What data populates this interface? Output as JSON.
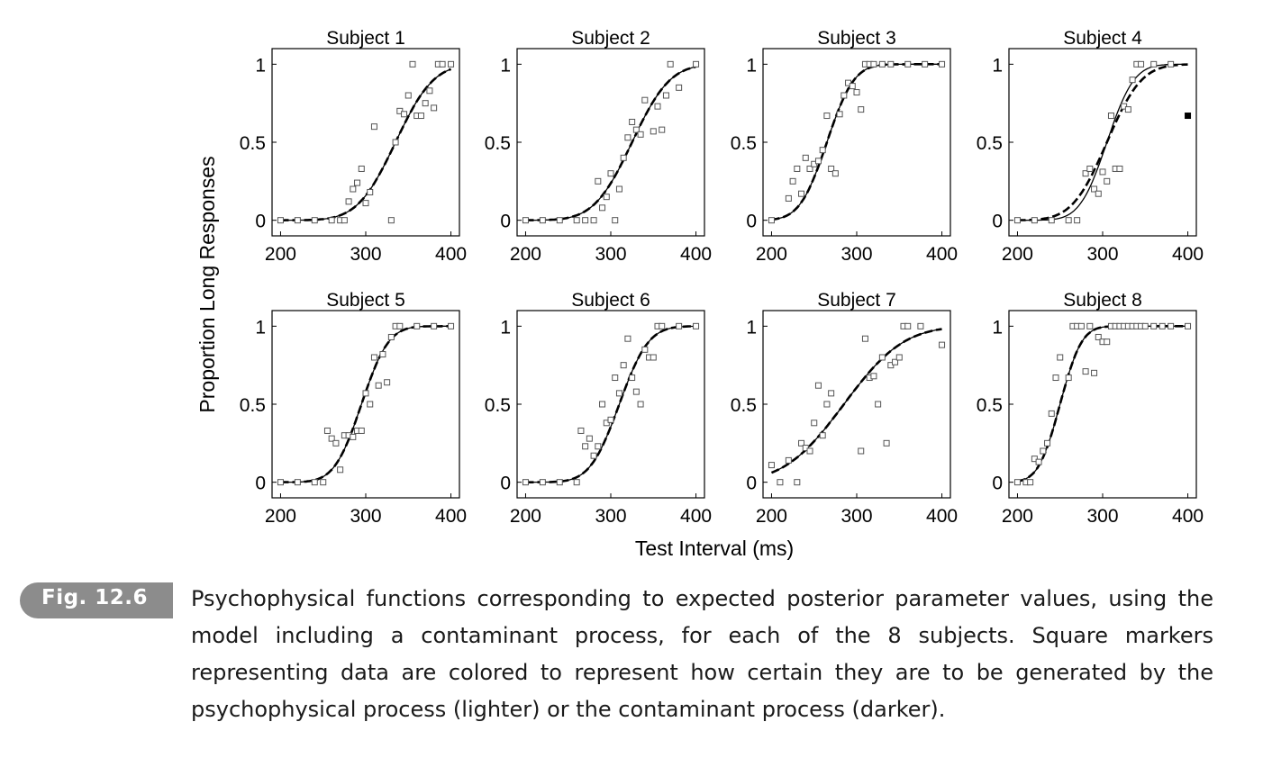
{
  "figure": {
    "y_label": "Proportion Long Responses",
    "x_label": "Test Interval (ms)"
  },
  "caption": {
    "badge": "Fig. 12.6",
    "text": "Psychophysical functions corresponding to expected posterior parameter values, using the model including a contaminant process, for each of the 8 subjects. Square markers representing data are colored to represent how certain they are to be generated by the psychophysical process (lighter) or the contaminant process (darker)."
  },
  "chart_data": [
    {
      "type": "scatter",
      "title": "Subject 1",
      "xlabel": "Test Interval (ms)",
      "ylabel": "Proportion Long Responses",
      "xlim": [
        190,
        410
      ],
      "ylim": [
        -0.1,
        1.1
      ],
      "xticks": [
        200,
        300,
        400
      ],
      "yticks": [
        0,
        0.5,
        1
      ],
      "fit_mu": 335,
      "fit_sigma": 35,
      "fit2_mu": 335,
      "fit2_sigma": 35,
      "points": [
        [
          200,
          0,
          0
        ],
        [
          220,
          0,
          0
        ],
        [
          240,
          0,
          0
        ],
        [
          260,
          0,
          0
        ],
        [
          270,
          0,
          0
        ],
        [
          275,
          0,
          0
        ],
        [
          280,
          0.12,
          0
        ],
        [
          285,
          0.2,
          0
        ],
        [
          290,
          0.24,
          0
        ],
        [
          295,
          0.33,
          0
        ],
        [
          300,
          0.11,
          0
        ],
        [
          305,
          0.18,
          0
        ],
        [
          310,
          0.6,
          0
        ],
        [
          330,
          0,
          0
        ],
        [
          335,
          0.5,
          0
        ],
        [
          340,
          0.7,
          0
        ],
        [
          345,
          0.68,
          0
        ],
        [
          350,
          0.8,
          0
        ],
        [
          355,
          1,
          0
        ],
        [
          360,
          0.67,
          0
        ],
        [
          365,
          0.67,
          0
        ],
        [
          370,
          0.75,
          0
        ],
        [
          375,
          0.83,
          0
        ],
        [
          380,
          0.72,
          0
        ],
        [
          385,
          1,
          0
        ],
        [
          390,
          1,
          0
        ],
        [
          400,
          1,
          0
        ]
      ]
    },
    {
      "type": "scatter",
      "title": "Subject 2",
      "xlabel": "Test Interval (ms)",
      "ylabel": "Proportion Long Responses",
      "xlim": [
        190,
        410
      ],
      "ylim": [
        -0.1,
        1.1
      ],
      "xticks": [
        200,
        300,
        400
      ],
      "yticks": [
        0,
        0.5,
        1
      ],
      "fit_mu": 325,
      "fit_sigma": 35,
      "fit2_mu": 325,
      "fit2_sigma": 35,
      "points": [
        [
          200,
          0,
          0
        ],
        [
          220,
          0,
          0
        ],
        [
          240,
          0,
          0
        ],
        [
          260,
          0,
          0
        ],
        [
          270,
          0,
          0
        ],
        [
          280,
          0,
          0
        ],
        [
          285,
          0.25,
          0
        ],
        [
          290,
          0.08,
          0
        ],
        [
          295,
          0.15,
          0
        ],
        [
          300,
          0.3,
          0
        ],
        [
          305,
          0,
          0
        ],
        [
          310,
          0.2,
          0
        ],
        [
          315,
          0.4,
          0
        ],
        [
          320,
          0.53,
          0
        ],
        [
          325,
          0.63,
          0
        ],
        [
          330,
          0.58,
          0
        ],
        [
          335,
          0.55,
          0
        ],
        [
          340,
          0.77,
          0
        ],
        [
          350,
          0.57,
          0
        ],
        [
          355,
          0.73,
          0
        ],
        [
          360,
          0.58,
          0
        ],
        [
          365,
          0.8,
          0
        ],
        [
          370,
          1,
          0
        ],
        [
          380,
          0.85,
          0
        ],
        [
          400,
          1,
          0
        ]
      ]
    },
    {
      "type": "scatter",
      "title": "Subject 3",
      "xlabel": "Test Interval (ms)",
      "ylabel": "Proportion Long Responses",
      "xlim": [
        190,
        410
      ],
      "ylim": [
        -0.1,
        1.1
      ],
      "xticks": [
        200,
        300,
        400
      ],
      "yticks": [
        0,
        0.5,
        1
      ],
      "fit_mu": 265,
      "fit_sigma": 25,
      "fit2_mu": 265,
      "fit2_sigma": 25,
      "points": [
        [
          200,
          0,
          0
        ],
        [
          220,
          0.14,
          0
        ],
        [
          225,
          0.25,
          0
        ],
        [
          230,
          0.33,
          0
        ],
        [
          235,
          0.17,
          0
        ],
        [
          240,
          0.4,
          0
        ],
        [
          245,
          0.33,
          0
        ],
        [
          250,
          0.36,
          0
        ],
        [
          255,
          0.38,
          0
        ],
        [
          260,
          0.45,
          0
        ],
        [
          265,
          0.67,
          0
        ],
        [
          270,
          0.33,
          0
        ],
        [
          275,
          0.3,
          0
        ],
        [
          280,
          0.68,
          0
        ],
        [
          285,
          0.8,
          0
        ],
        [
          290,
          0.88,
          0
        ],
        [
          295,
          0.86,
          0
        ],
        [
          300,
          0.82,
          0
        ],
        [
          305,
          0.71,
          0
        ],
        [
          310,
          1,
          0
        ],
        [
          315,
          1,
          0
        ],
        [
          320,
          1,
          0
        ],
        [
          330,
          1,
          0
        ],
        [
          340,
          1,
          0
        ],
        [
          360,
          1,
          0
        ],
        [
          380,
          1,
          0
        ],
        [
          400,
          1,
          0
        ]
      ]
    },
    {
      "type": "scatter",
      "title": "Subject 4",
      "xlabel": "Test Interval (ms)",
      "ylabel": "Proportion Long Responses",
      "xlim": [
        190,
        410
      ],
      "ylim": [
        -0.1,
        1.1
      ],
      "xticks": [
        200,
        300,
        400
      ],
      "yticks": [
        0,
        0.5,
        1
      ],
      "fit_mu": 305,
      "fit_sigma": 25,
      "fit2_mu": 305,
      "fit2_sigma": 32,
      "points": [
        [
          200,
          0,
          0
        ],
        [
          220,
          0,
          0
        ],
        [
          240,
          0,
          0
        ],
        [
          260,
          0,
          0
        ],
        [
          270,
          0,
          0
        ],
        [
          280,
          0.3,
          0
        ],
        [
          285,
          0.33,
          0
        ],
        [
          290,
          0.2,
          0
        ],
        [
          295,
          0.17,
          0
        ],
        [
          300,
          0.31,
          0
        ],
        [
          305,
          0.25,
          0
        ],
        [
          310,
          0.67,
          0
        ],
        [
          315,
          0.33,
          0
        ],
        [
          320,
          0.33,
          0
        ],
        [
          325,
          0.73,
          0
        ],
        [
          330,
          0.71,
          0
        ],
        [
          335,
          0.9,
          0
        ],
        [
          340,
          1,
          0
        ],
        [
          345,
          1,
          0
        ],
        [
          360,
          1,
          0
        ],
        [
          380,
          1,
          0
        ],
        [
          400,
          0.67,
          1
        ]
      ]
    },
    {
      "type": "scatter",
      "title": "Subject 5",
      "xlabel": "Test Interval (ms)",
      "ylabel": "Proportion Long Responses",
      "xlim": [
        190,
        410
      ],
      "ylim": [
        -0.1,
        1.1
      ],
      "xticks": [
        200,
        300,
        400
      ],
      "yticks": [
        0,
        0.5,
        1
      ],
      "fit_mu": 295,
      "fit_sigma": 25,
      "fit2_mu": 295,
      "fit2_sigma": 25,
      "points": [
        [
          200,
          0,
          0
        ],
        [
          220,
          0,
          0
        ],
        [
          240,
          0,
          0
        ],
        [
          250,
          0,
          0
        ],
        [
          255,
          0.33,
          0
        ],
        [
          260,
          0.28,
          0
        ],
        [
          265,
          0.25,
          0
        ],
        [
          270,
          0.08,
          0
        ],
        [
          275,
          0.3,
          0
        ],
        [
          280,
          0.3,
          0
        ],
        [
          285,
          0.29,
          0
        ],
        [
          290,
          0.33,
          0
        ],
        [
          295,
          0.33,
          0
        ],
        [
          300,
          0.57,
          0
        ],
        [
          305,
          0.5,
          0
        ],
        [
          310,
          0.8,
          0
        ],
        [
          315,
          0.62,
          0
        ],
        [
          320,
          0.82,
          0
        ],
        [
          325,
          0.64,
          0
        ],
        [
          330,
          0.93,
          0
        ],
        [
          335,
          1,
          0
        ],
        [
          340,
          1,
          0
        ],
        [
          360,
          1,
          0
        ],
        [
          380,
          1,
          0
        ],
        [
          400,
          1,
          0
        ]
      ]
    },
    {
      "type": "scatter",
      "title": "Subject 6",
      "xlabel": "Test Interval (ms)",
      "ylabel": "Proportion Long Responses",
      "xlim": [
        190,
        410
      ],
      "ylim": [
        -0.1,
        1.1
      ],
      "xticks": [
        200,
        300,
        400
      ],
      "yticks": [
        0,
        0.5,
        1
      ],
      "fit_mu": 310,
      "fit_sigma": 27,
      "fit2_mu": 310,
      "fit2_sigma": 27,
      "points": [
        [
          200,
          0,
          0
        ],
        [
          220,
          0,
          0
        ],
        [
          240,
          0,
          0
        ],
        [
          260,
          0,
          0
        ],
        [
          265,
          0.33,
          0
        ],
        [
          270,
          0.23,
          0
        ],
        [
          275,
          0.28,
          0
        ],
        [
          280,
          0.17,
          0
        ],
        [
          285,
          0.23,
          0
        ],
        [
          290,
          0.5,
          0
        ],
        [
          295,
          0.38,
          0
        ],
        [
          300,
          0.4,
          0
        ],
        [
          305,
          0.67,
          0
        ],
        [
          310,
          0.57,
          0
        ],
        [
          315,
          0.75,
          0
        ],
        [
          320,
          0.92,
          0
        ],
        [
          325,
          0.67,
          0
        ],
        [
          330,
          0.58,
          0
        ],
        [
          335,
          0.5,
          0
        ],
        [
          340,
          0.85,
          0
        ],
        [
          345,
          0.8,
          0
        ],
        [
          350,
          0.8,
          0
        ],
        [
          355,
          1,
          0
        ],
        [
          360,
          1,
          0
        ],
        [
          380,
          1,
          0
        ],
        [
          400,
          1,
          0
        ]
      ]
    },
    {
      "type": "scatter",
      "title": "Subject 7",
      "xlabel": "Test Interval (ms)",
      "ylabel": "Proportion Long Responses",
      "xlim": [
        190,
        410
      ],
      "ylim": [
        -0.1,
        1.1
      ],
      "xticks": [
        200,
        300,
        400
      ],
      "yticks": [
        0,
        0.5,
        1
      ],
      "fit_mu": 285,
      "fit_sigma": 55,
      "fit2_mu": 285,
      "fit2_sigma": 55,
      "points": [
        [
          200,
          0.11,
          0
        ],
        [
          210,
          0,
          0
        ],
        [
          220,
          0.14,
          0
        ],
        [
          230,
          0,
          0
        ],
        [
          235,
          0.25,
          0
        ],
        [
          240,
          0.22,
          0
        ],
        [
          245,
          0.2,
          0
        ],
        [
          250,
          0.38,
          0
        ],
        [
          255,
          0.62,
          0
        ],
        [
          260,
          0.3,
          0
        ],
        [
          265,
          0.5,
          0
        ],
        [
          270,
          0.57,
          0
        ],
        [
          305,
          0.2,
          0
        ],
        [
          310,
          0.92,
          0
        ],
        [
          315,
          0.67,
          0
        ],
        [
          320,
          0.68,
          0
        ],
        [
          325,
          0.5,
          0
        ],
        [
          330,
          0.8,
          0
        ],
        [
          335,
          0.25,
          0
        ],
        [
          340,
          0.75,
          0
        ],
        [
          345,
          0.77,
          0
        ],
        [
          350,
          0.8,
          0
        ],
        [
          355,
          1,
          0
        ],
        [
          360,
          1,
          0
        ],
        [
          375,
          1,
          0
        ],
        [
          400,
          0.88,
          0
        ]
      ]
    },
    {
      "type": "scatter",
      "title": "Subject 8",
      "xlabel": "Test Interval (ms)",
      "ylabel": "Proportion Long Responses",
      "xlim": [
        190,
        410
      ],
      "ylim": [
        -0.1,
        1.1
      ],
      "xticks": [
        200,
        300,
        400
      ],
      "yticks": [
        0,
        0.5,
        1
      ],
      "fit_mu": 250,
      "fit_sigma": 20,
      "fit2_mu": 250,
      "fit2_sigma": 20,
      "points": [
        [
          200,
          0,
          0
        ],
        [
          210,
          0,
          0
        ],
        [
          215,
          0,
          0
        ],
        [
          220,
          0.15,
          0
        ],
        [
          225,
          0.13,
          0
        ],
        [
          230,
          0.2,
          0
        ],
        [
          235,
          0.25,
          0
        ],
        [
          240,
          0.44,
          0
        ],
        [
          245,
          0.67,
          0
        ],
        [
          250,
          0.8,
          0
        ],
        [
          260,
          0.67,
          0
        ],
        [
          265,
          1,
          0
        ],
        [
          270,
          1,
          0
        ],
        [
          275,
          1,
          0
        ],
        [
          280,
          0.71,
          0
        ],
        [
          285,
          1,
          0
        ],
        [
          290,
          0.7,
          0
        ],
        [
          295,
          0.93,
          0
        ],
        [
          300,
          0.9,
          0
        ],
        [
          305,
          0.9,
          0
        ],
        [
          310,
          1,
          0
        ],
        [
          315,
          1,
          0
        ],
        [
          320,
          1,
          0
        ],
        [
          325,
          1,
          0
        ],
        [
          330,
          1,
          0
        ],
        [
          335,
          1,
          0
        ],
        [
          340,
          1,
          0
        ],
        [
          345,
          1,
          0
        ],
        [
          350,
          1,
          0
        ],
        [
          360,
          1,
          0
        ],
        [
          370,
          1,
          0
        ],
        [
          380,
          1,
          0
        ],
        [
          400,
          1,
          0
        ]
      ]
    }
  ]
}
